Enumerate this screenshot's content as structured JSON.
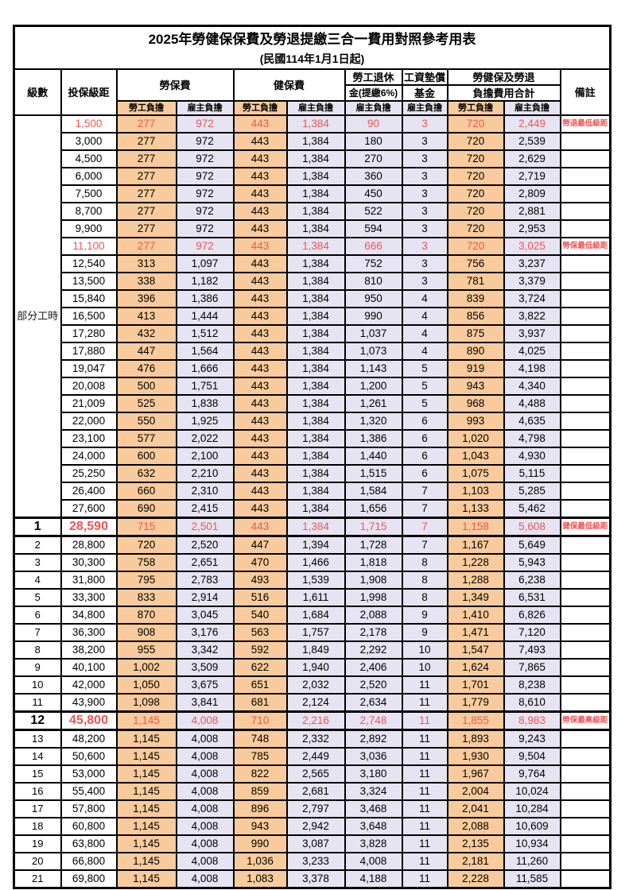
{
  "title": {
    "line1": "2025年勞健保保費及勞退提繳三合一費用對照參考用表",
    "line2": "(民國114年1月1日起)"
  },
  "header": {
    "level": "級數",
    "bracket": "投保級距",
    "labor_insurance": "勞保費",
    "health_insurance": "健保費",
    "pension_line1": "勞工退休",
    "pension_line2": "金(提繳6%)",
    "wage_fund_line1": "工資墊償",
    "wage_fund_line2": "基金",
    "total_line1": "勞健保及勞退",
    "total_line2": "負擔費用合計",
    "remark": "備註",
    "employee_label": "勞工負擔",
    "employer_label": "雇主負擔"
  },
  "colors": {
    "employee_bg": "#f9cb9c",
    "employer_bg": "#e6e4f2",
    "highlight_text": "#f05454",
    "grid": "#000000"
  },
  "part_time": {
    "label": "部分工時",
    "span": 23
  },
  "rows": [
    {
      "l": "",
      "b": "1,500",
      "v": [
        "277",
        "972",
        "443",
        "1,384",
        "90",
        "3",
        "720",
        "2,449"
      ],
      "r": "勞退最低級距",
      "hl": true,
      "big": false
    },
    {
      "l": "",
      "b": "3,000",
      "v": [
        "277",
        "972",
        "443",
        "1,384",
        "180",
        "3",
        "720",
        "2,539"
      ],
      "r": "",
      "hl": false,
      "big": false
    },
    {
      "l": "",
      "b": "4,500",
      "v": [
        "277",
        "972",
        "443",
        "1,384",
        "270",
        "3",
        "720",
        "2,629"
      ],
      "r": "",
      "hl": false,
      "big": false
    },
    {
      "l": "",
      "b": "6,000",
      "v": [
        "277",
        "972",
        "443",
        "1,384",
        "360",
        "3",
        "720",
        "2,719"
      ],
      "r": "",
      "hl": false,
      "big": false
    },
    {
      "l": "",
      "b": "7,500",
      "v": [
        "277",
        "972",
        "443",
        "1,384",
        "450",
        "3",
        "720",
        "2,809"
      ],
      "r": "",
      "hl": false,
      "big": false
    },
    {
      "l": "",
      "b": "8,700",
      "v": [
        "277",
        "972",
        "443",
        "1,384",
        "522",
        "3",
        "720",
        "2,881"
      ],
      "r": "",
      "hl": false,
      "big": false
    },
    {
      "l": "",
      "b": "9,900",
      "v": [
        "277",
        "972",
        "443",
        "1,384",
        "594",
        "3",
        "720",
        "2,953"
      ],
      "r": "",
      "hl": false,
      "big": false
    },
    {
      "l": "",
      "b": "11,100",
      "v": [
        "277",
        "972",
        "443",
        "1,384",
        "666",
        "3",
        "720",
        "3,025"
      ],
      "r": "勞保最低級距",
      "hl": true,
      "big": false
    },
    {
      "l": "",
      "b": "12,540",
      "v": [
        "313",
        "1,097",
        "443",
        "1,384",
        "752",
        "3",
        "756",
        "3,237"
      ],
      "r": "",
      "hl": false,
      "big": false
    },
    {
      "l": "",
      "b": "13,500",
      "v": [
        "338",
        "1,182",
        "443",
        "1,384",
        "810",
        "3",
        "781",
        "3,379"
      ],
      "r": "",
      "hl": false,
      "big": false
    },
    {
      "l": "",
      "b": "15,840",
      "v": [
        "396",
        "1,386",
        "443",
        "1,384",
        "950",
        "4",
        "839",
        "3,724"
      ],
      "r": "",
      "hl": false,
      "big": false
    },
    {
      "l": "",
      "b": "16,500",
      "v": [
        "413",
        "1,444",
        "443",
        "1,384",
        "990",
        "4",
        "856",
        "3,822"
      ],
      "r": "",
      "hl": false,
      "big": false
    },
    {
      "l": "",
      "b": "17,280",
      "v": [
        "432",
        "1,512",
        "443",
        "1,384",
        "1,037",
        "4",
        "875",
        "3,937"
      ],
      "r": "",
      "hl": false,
      "big": false
    },
    {
      "l": "",
      "b": "17,880",
      "v": [
        "447",
        "1,564",
        "443",
        "1,384",
        "1,073",
        "4",
        "890",
        "4,025"
      ],
      "r": "",
      "hl": false,
      "big": false
    },
    {
      "l": "",
      "b": "19,047",
      "v": [
        "476",
        "1,666",
        "443",
        "1,384",
        "1,143",
        "5",
        "919",
        "4,198"
      ],
      "r": "",
      "hl": false,
      "big": false
    },
    {
      "l": "",
      "b": "20,008",
      "v": [
        "500",
        "1,751",
        "443",
        "1,384",
        "1,200",
        "5",
        "943",
        "4,340"
      ],
      "r": "",
      "hl": false,
      "big": false
    },
    {
      "l": "",
      "b": "21,009",
      "v": [
        "525",
        "1,838",
        "443",
        "1,384",
        "1,261",
        "5",
        "968",
        "4,488"
      ],
      "r": "",
      "hl": false,
      "big": false
    },
    {
      "l": "",
      "b": "22,000",
      "v": [
        "550",
        "1,925",
        "443",
        "1,384",
        "1,320",
        "6",
        "993",
        "4,635"
      ],
      "r": "",
      "hl": false,
      "big": false
    },
    {
      "l": "",
      "b": "23,100",
      "v": [
        "577",
        "2,022",
        "443",
        "1,384",
        "1,386",
        "6",
        "1,020",
        "4,798"
      ],
      "r": "",
      "hl": false,
      "big": false
    },
    {
      "l": "",
      "b": "24,000",
      "v": [
        "600",
        "2,100",
        "443",
        "1,384",
        "1,440",
        "6",
        "1,043",
        "4,930"
      ],
      "r": "",
      "hl": false,
      "big": false
    },
    {
      "l": "",
      "b": "25,250",
      "v": [
        "632",
        "2,210",
        "443",
        "1,384",
        "1,515",
        "6",
        "1,075",
        "5,115"
      ],
      "r": "",
      "hl": false,
      "big": false
    },
    {
      "l": "",
      "b": "26,400",
      "v": [
        "660",
        "2,310",
        "443",
        "1,384",
        "1,584",
        "7",
        "1,103",
        "5,285"
      ],
      "r": "",
      "hl": false,
      "big": false
    },
    {
      "l": "",
      "b": "27,600",
      "v": [
        "690",
        "2,415",
        "443",
        "1,384",
        "1,656",
        "7",
        "1,133",
        "5,462"
      ],
      "r": "",
      "hl": false,
      "big": false
    },
    {
      "l": "1",
      "b": "28,590",
      "v": [
        "715",
        "2,501",
        "443",
        "1,384",
        "1,715",
        "7",
        "1,158",
        "5,608"
      ],
      "r": "健保最低級距",
      "hl": true,
      "big": true
    },
    {
      "l": "2",
      "b": "28,800",
      "v": [
        "720",
        "2,520",
        "447",
        "1,394",
        "1,728",
        "7",
        "1,167",
        "5,649"
      ],
      "r": "",
      "hl": false,
      "big": false
    },
    {
      "l": "3",
      "b": "30,300",
      "v": [
        "758",
        "2,651",
        "470",
        "1,466",
        "1,818",
        "8",
        "1,228",
        "5,943"
      ],
      "r": "",
      "hl": false,
      "big": false
    },
    {
      "l": "4",
      "b": "31,800",
      "v": [
        "795",
        "2,783",
        "493",
        "1,539",
        "1,908",
        "8",
        "1,288",
        "6,238"
      ],
      "r": "",
      "hl": false,
      "big": false
    },
    {
      "l": "5",
      "b": "33,300",
      "v": [
        "833",
        "2,914",
        "516",
        "1,611",
        "1,998",
        "8",
        "1,349",
        "6,531"
      ],
      "r": "",
      "hl": false,
      "big": false
    },
    {
      "l": "6",
      "b": "34,800",
      "v": [
        "870",
        "3,045",
        "540",
        "1,684",
        "2,088",
        "9",
        "1,410",
        "6,826"
      ],
      "r": "",
      "hl": false,
      "big": false
    },
    {
      "l": "7",
      "b": "36,300",
      "v": [
        "908",
        "3,176",
        "563",
        "1,757",
        "2,178",
        "9",
        "1,471",
        "7,120"
      ],
      "r": "",
      "hl": false,
      "big": false
    },
    {
      "l": "8",
      "b": "38,200",
      "v": [
        "955",
        "3,342",
        "592",
        "1,849",
        "2,292",
        "10",
        "1,547",
        "7,493"
      ],
      "r": "",
      "hl": false,
      "big": false
    },
    {
      "l": "9",
      "b": "40,100",
      "v": [
        "1,002",
        "3,509",
        "622",
        "1,940",
        "2,406",
        "10",
        "1,624",
        "7,865"
      ],
      "r": "",
      "hl": false,
      "big": false
    },
    {
      "l": "10",
      "b": "42,000",
      "v": [
        "1,050",
        "3,675",
        "651",
        "2,032",
        "2,520",
        "11",
        "1,701",
        "8,238"
      ],
      "r": "",
      "hl": false,
      "big": false
    },
    {
      "l": "11",
      "b": "43,900",
      "v": [
        "1,098",
        "3,841",
        "681",
        "2,124",
        "2,634",
        "11",
        "1,779",
        "8,610"
      ],
      "r": "",
      "hl": false,
      "big": false
    },
    {
      "l": "12",
      "b": "45,800",
      "v": [
        "1,145",
        "4,008",
        "710",
        "2,216",
        "2,748",
        "11",
        "1,855",
        "8,983"
      ],
      "r": "勞保最高級距",
      "hl": true,
      "big": true
    },
    {
      "l": "13",
      "b": "48,200",
      "v": [
        "1,145",
        "4,008",
        "748",
        "2,332",
        "2,892",
        "11",
        "1,893",
        "9,243"
      ],
      "r": "",
      "hl": false,
      "big": false
    },
    {
      "l": "14",
      "b": "50,600",
      "v": [
        "1,145",
        "4,008",
        "785",
        "2,449",
        "3,036",
        "11",
        "1,930",
        "9,504"
      ],
      "r": "",
      "hl": false,
      "big": false
    },
    {
      "l": "15",
      "b": "53,000",
      "v": [
        "1,145",
        "4,008",
        "822",
        "2,565",
        "3,180",
        "11",
        "1,967",
        "9,764"
      ],
      "r": "",
      "hl": false,
      "big": false
    },
    {
      "l": "16",
      "b": "55,400",
      "v": [
        "1,145",
        "4,008",
        "859",
        "2,681",
        "3,324",
        "11",
        "2,004",
        "10,024"
      ],
      "r": "",
      "hl": false,
      "big": false
    },
    {
      "l": "17",
      "b": "57,800",
      "v": [
        "1,145",
        "4,008",
        "896",
        "2,797",
        "3,468",
        "11",
        "2,041",
        "10,284"
      ],
      "r": "",
      "hl": false,
      "big": false
    },
    {
      "l": "18",
      "b": "60,800",
      "v": [
        "1,145",
        "4,008",
        "943",
        "2,942",
        "3,648",
        "11",
        "2,088",
        "10,609"
      ],
      "r": "",
      "hl": false,
      "big": false
    },
    {
      "l": "19",
      "b": "63,800",
      "v": [
        "1,145",
        "4,008",
        "990",
        "3,087",
        "3,828",
        "11",
        "2,135",
        "10,934"
      ],
      "r": "",
      "hl": false,
      "big": false
    },
    {
      "l": "20",
      "b": "66,800",
      "v": [
        "1,145",
        "4,008",
        "1,036",
        "3,233",
        "4,008",
        "11",
        "2,181",
        "11,260"
      ],
      "r": "",
      "hl": false,
      "big": false
    },
    {
      "l": "21",
      "b": "69,800",
      "v": [
        "1,145",
        "4,008",
        "1,083",
        "3,378",
        "4,188",
        "11",
        "2,228",
        "11,585"
      ],
      "r": "",
      "hl": false,
      "big": false
    }
  ]
}
